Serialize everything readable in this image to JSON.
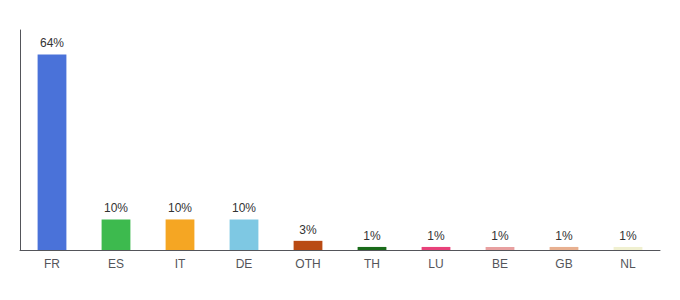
{
  "chart_data": {
    "type": "bar",
    "categories": [
      "FR",
      "ES",
      "IT",
      "DE",
      "OTH",
      "TH",
      "LU",
      "BE",
      "GB",
      "NL"
    ],
    "values": [
      64,
      10,
      10,
      10,
      3,
      1,
      1,
      1,
      1,
      1
    ],
    "value_labels": [
      "64%",
      "10%",
      "10%",
      "10%",
      "3%",
      "1%",
      "1%",
      "1%",
      "1%",
      "1%"
    ],
    "colors": [
      "#4a72d9",
      "#3dba4e",
      "#f5a623",
      "#7ec8e3",
      "#b94a13",
      "#1a6b1a",
      "#e8417a",
      "#e8a0a0",
      "#e8b090",
      "#f0f0d0"
    ],
    "ylim": [
      0,
      72
    ],
    "data_labels": true,
    "tick_labels": "x",
    "grid": false
  }
}
